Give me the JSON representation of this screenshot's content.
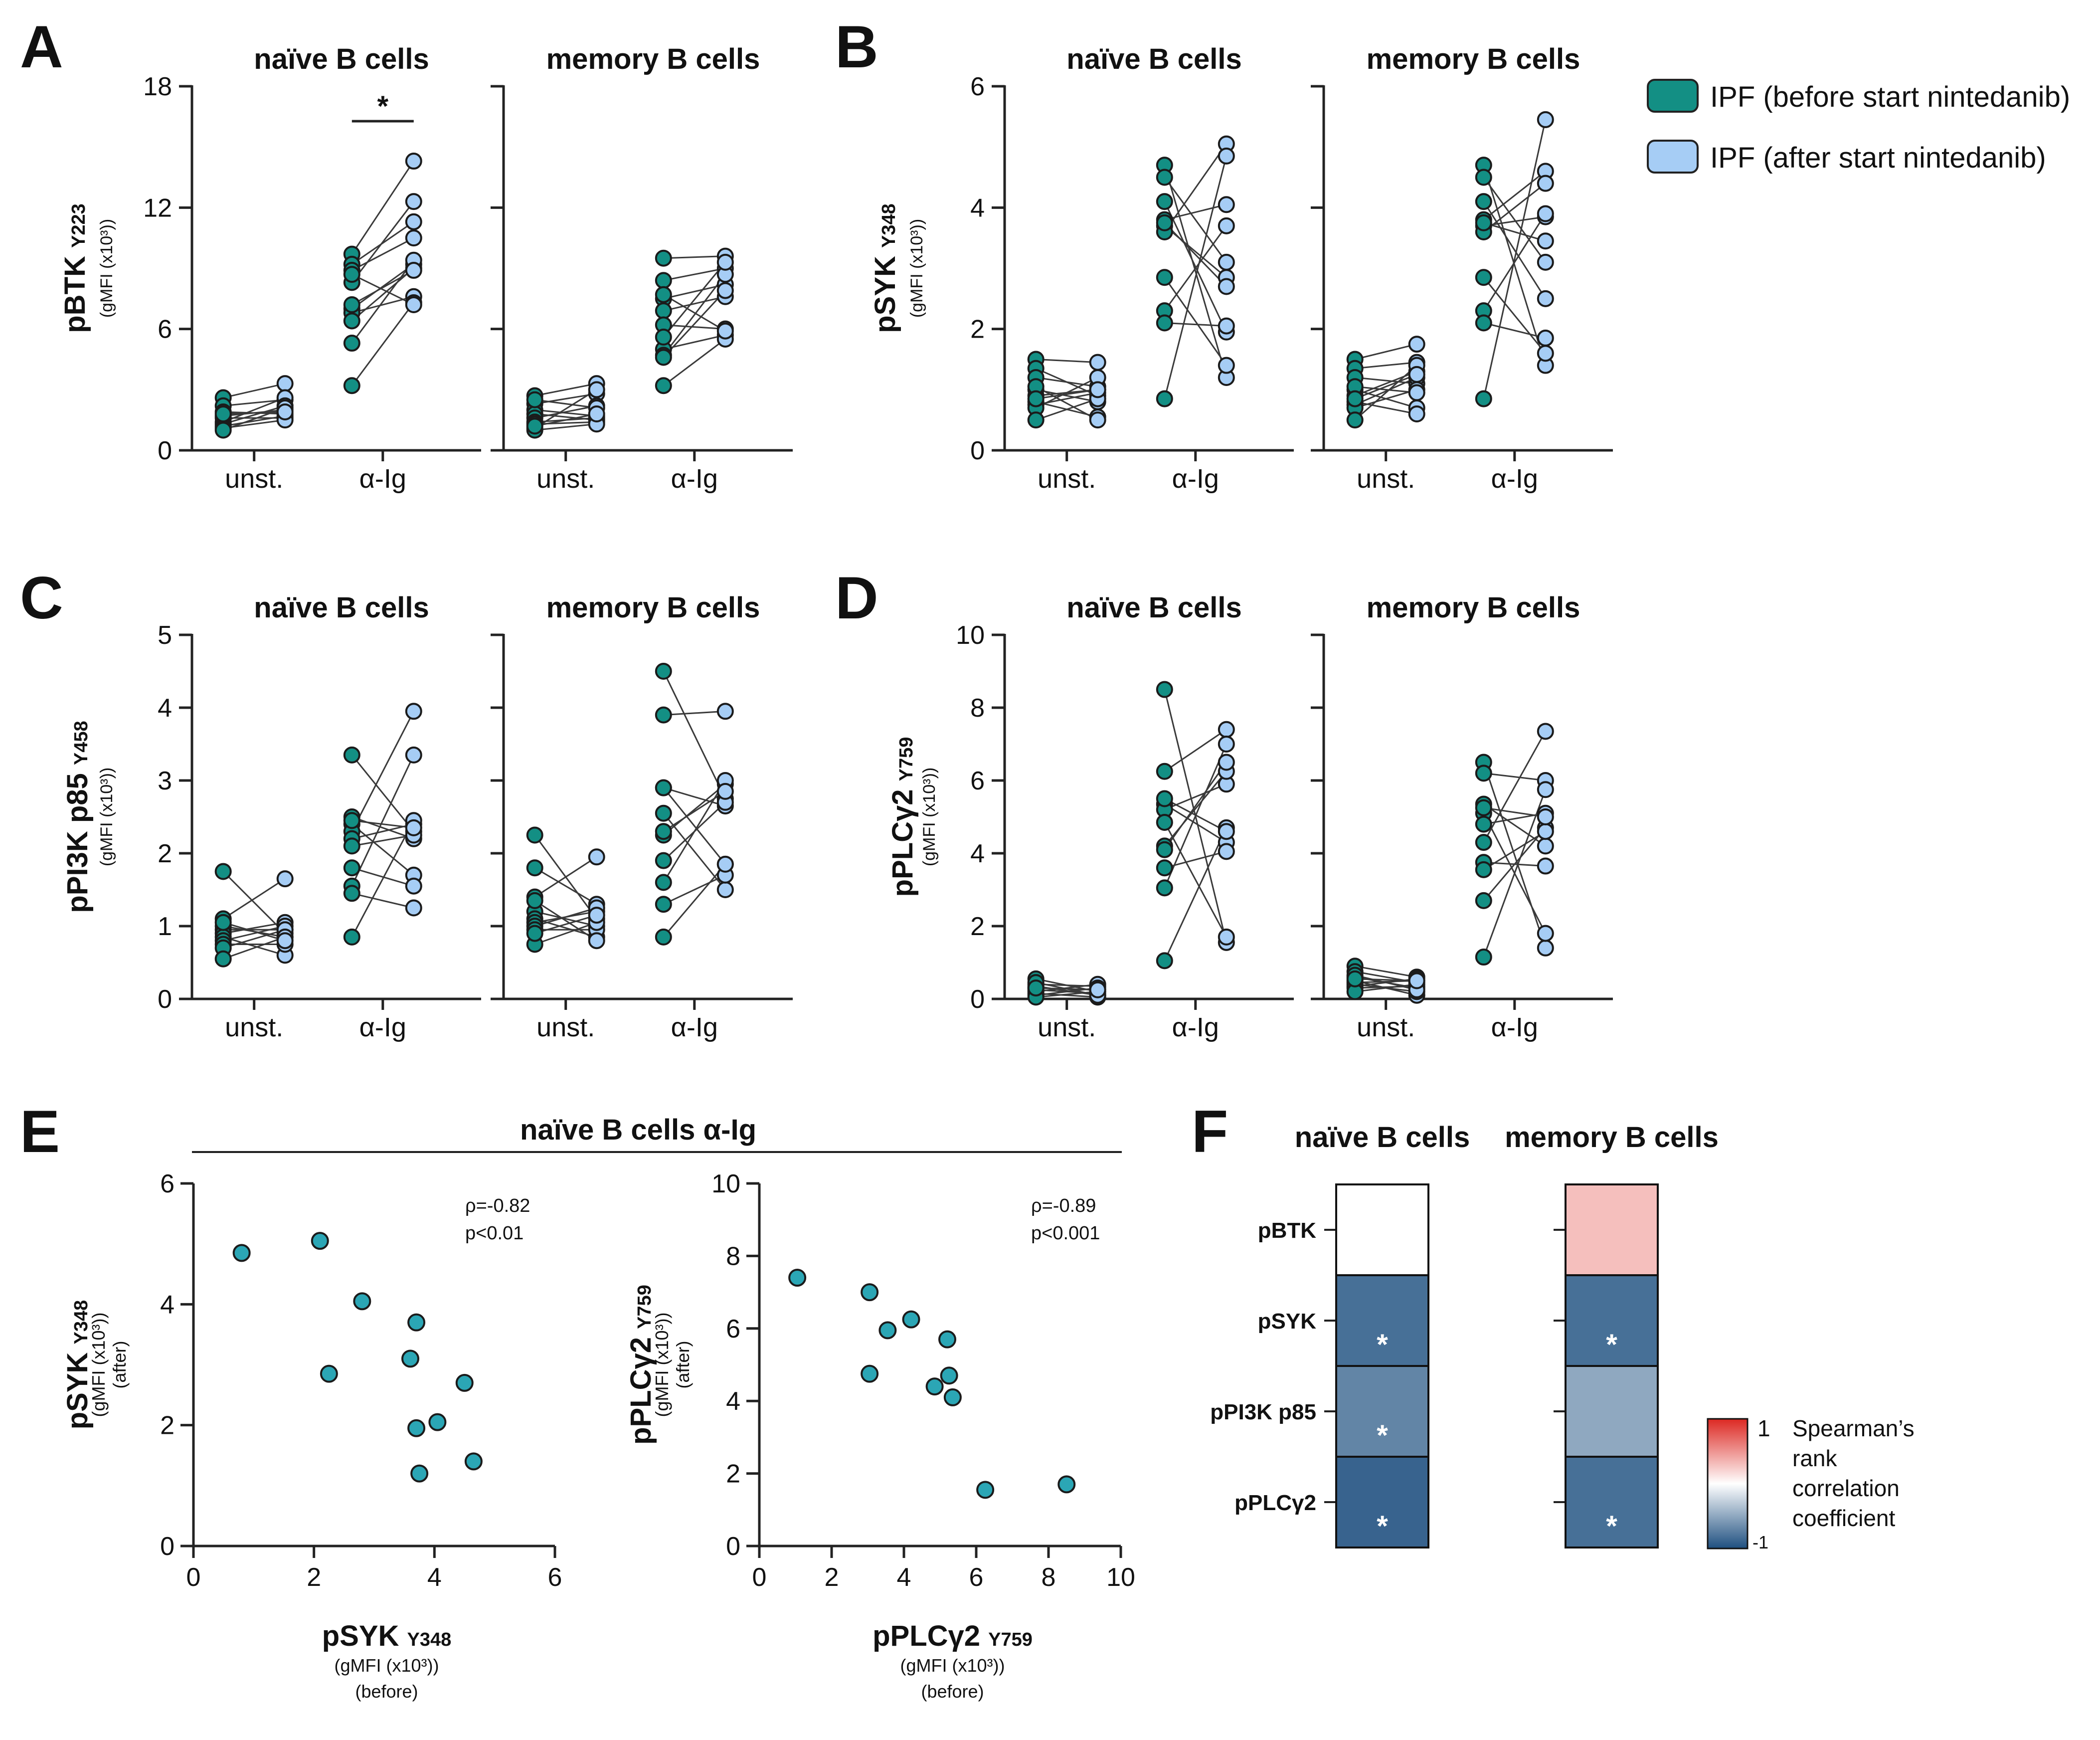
{
  "legend": {
    "before": {
      "label": "IPF (before start nintedanib)",
      "color": "#138f84"
    },
    "after": {
      "label": "IPF (after start nintedanib)",
      "color": "#a6cdf5"
    }
  },
  "colors": {
    "line": "#3a3a3a",
    "axis": "#222222",
    "scatter": "#2ba6b5"
  },
  "chart_data": [
    {
      "id": "A",
      "letter": "A",
      "type": "scatter",
      "ylabel_main": "pBTK",
      "ylabel_site": "Y223",
      "ylabel_unit": "(gMFI (x10³))",
      "ylim": [
        0,
        18
      ],
      "yticks": [
        "0",
        "6",
        "12",
        "18"
      ],
      "ytick_values": [
        0,
        6,
        12,
        18
      ],
      "categories": [
        "unst.",
        "α-Ig"
      ],
      "significance": {
        "panel": 0,
        "category": 1,
        "label": "*"
      },
      "panels": [
        {
          "title": "naïve B cells",
          "unst": {
            "before": [
              2.6,
              2.2,
              1.9,
              1.7,
              1.6,
              1.4,
              1.3,
              1.2,
              1.1,
              1.0,
              1.8
            ],
            "after": [
              3.3,
              2.5,
              1.8,
              2.0,
              1.6,
              2.6,
              2.2,
              1.7,
              1.5,
              2.1,
              1.9
            ]
          },
          "aig": {
            "before": [
              9.7,
              9.2,
              8.9,
              8.3,
              7.0,
              6.8,
              6.4,
              5.3,
              3.2,
              8.7,
              7.2
            ],
            "after": [
              14.3,
              11.3,
              10.5,
              12.3,
              9.2,
              7.6,
              9.0,
              9.4,
              7.3,
              7.2,
              8.9
            ]
          }
        },
        {
          "title": "memory B cells",
          "unst": {
            "before": [
              2.7,
              2.3,
              2.0,
              1.8,
              1.6,
              1.4,
              1.3,
              1.1,
              1.0,
              2.5,
              1.2
            ],
            "after": [
              3.3,
              2.8,
              1.7,
              1.5,
              2.2,
              1.6,
              1.4,
              3.0,
              1.3,
              2.1,
              1.8
            ]
          },
          "aig": {
            "before": [
              9.5,
              8.4,
              7.5,
              6.9,
              6.2,
              5.0,
              4.7,
              4.6,
              3.2,
              7.7,
              5.6
            ],
            "after": [
              9.6,
              9.0,
              8.2,
              7.6,
              6.0,
              5.7,
              8.7,
              7.9,
              5.5,
              5.9,
              9.3
            ]
          }
        }
      ]
    },
    {
      "id": "B",
      "letter": "B",
      "type": "scatter",
      "ylabel_main": "pSYK",
      "ylabel_site": "Y348",
      "ylabel_unit": "(gMFI (x10³))",
      "ylim": [
        0,
        6
      ],
      "yticks": [
        "0",
        "2",
        "4",
        "6"
      ],
      "ytick_values": [
        0,
        2,
        4,
        6
      ],
      "categories": [
        "unst.",
        "α-Ig"
      ],
      "panels": [
        {
          "title": "naïve B cells",
          "unst": {
            "before": [
              1.5,
              1.35,
              1.2,
              1.0,
              0.9,
              0.8,
              0.75,
              0.7,
              0.5,
              1.05,
              0.85
            ],
            "after": [
              1.45,
              0.9,
              1.05,
              0.8,
              1.0,
              0.55,
              0.95,
              1.2,
              0.85,
              0.5,
              1.0
            ]
          },
          "aig": {
            "before": [
              4.7,
              4.5,
              4.1,
              3.8,
              3.7,
              3.6,
              2.85,
              2.3,
              2.1,
              0.85,
              3.75
            ],
            "after": [
              1.2,
              3.1,
              1.95,
              4.05,
              2.85,
              5.05,
              1.4,
              3.7,
              2.05,
              4.85,
              2.7
            ]
          }
        },
        {
          "title": "memory B cells",
          "unst": {
            "before": [
              1.5,
              1.35,
              1.2,
              1.0,
              0.9,
              0.8,
              0.75,
              0.7,
              0.5,
              1.05,
              0.85
            ],
            "after": [
              1.75,
              1.45,
              1.1,
              0.7,
              1.3,
              0.6,
              1.2,
              1.0,
              1.4,
              0.95,
              1.25
            ]
          },
          "aig": {
            "before": [
              4.7,
              4.5,
              4.1,
              3.8,
              3.7,
              3.6,
              2.85,
              2.3,
              2.1,
              0.85,
              3.75
            ],
            "after": [
              1.4,
              3.1,
              2.5,
              4.6,
              3.85,
              4.4,
              1.6,
              3.9,
              1.85,
              5.45,
              3.45
            ]
          }
        }
      ]
    },
    {
      "id": "C",
      "letter": "C",
      "type": "scatter",
      "ylabel_main": "pPI3K p85",
      "ylabel_site": "Y458",
      "ylabel_unit": "(gMFI (x10³))",
      "ylim": [
        0,
        5
      ],
      "yticks": [
        "0",
        "1",
        "2",
        "3",
        "4",
        "5"
      ],
      "ytick_values": [
        0,
        1,
        2,
        3,
        4,
        5
      ],
      "categories": [
        "unst.",
        "α-Ig"
      ],
      "panels": [
        {
          "title": "naïve B cells",
          "unst": {
            "before": [
              1.75,
              1.1,
              1.0,
              0.95,
              0.9,
              0.85,
              0.8,
              0.75,
              0.7,
              0.55,
              1.05
            ],
            "after": [
              0.9,
              1.65,
              0.85,
              0.95,
              1.05,
              0.6,
              1.0,
              0.75,
              0.95,
              0.85,
              0.8
            ]
          },
          "aig": {
            "before": [
              3.35,
              2.5,
              2.4,
              2.3,
              2.2,
              1.8,
              1.55,
              1.45,
              0.85,
              2.1,
              2.45
            ],
            "after": [
              2.3,
              2.2,
              1.7,
              3.95,
              2.4,
              1.55,
              3.35,
              1.25,
              2.45,
              2.25,
              2.35
            ]
          }
        },
        {
          "title": "memory B cells",
          "unst": {
            "before": [
              2.25,
              1.8,
              1.4,
              1.2,
              1.1,
              1.05,
              1.0,
              0.95,
              0.75,
              0.9,
              1.35
            ],
            "after": [
              1.1,
              1.3,
              1.95,
              1.0,
              0.85,
              1.2,
              1.25,
              0.95,
              1.05,
              1.15,
              0.8
            ]
          },
          "aig": {
            "before": [
              4.5,
              3.9,
              2.9,
              2.9,
              2.55,
              2.25,
              1.9,
              1.6,
              1.3,
              0.85,
              2.3
            ],
            "after": [
              2.75,
              3.95,
              1.85,
              2.65,
              1.5,
              2.95,
              2.7,
              3.0,
              1.7,
              1.85,
              2.85
            ]
          }
        }
      ]
    },
    {
      "id": "D",
      "letter": "D",
      "type": "scatter",
      "ylabel_main": "pPLCγ2",
      "ylabel_site": "Y759",
      "ylabel_unit": "(gMFI (x10³))",
      "ylim": [
        0,
        10
      ],
      "yticks": [
        "0",
        "2",
        "4",
        "6",
        "8",
        "10"
      ],
      "ytick_values": [
        0,
        2,
        4,
        6,
        8,
        10
      ],
      "categories": [
        "unst.",
        "α-Ig"
      ],
      "panels": [
        {
          "title": "naïve B cells",
          "unst": {
            "before": [
              0.55,
              0.4,
              0.35,
              0.3,
              0.25,
              0.2,
              0.15,
              0.1,
              0.05,
              0.45,
              0.3
            ],
            "after": [
              0.2,
              0.35,
              0.1,
              0.25,
              0.15,
              0.4,
              0.05,
              0.3,
              0.2,
              0.1,
              0.25
            ]
          },
          "aig": {
            "before": [
              8.5,
              6.25,
              5.35,
              5.2,
              4.85,
              4.2,
              3.6,
              3.05,
              1.05,
              4.1,
              5.5
            ],
            "after": [
              1.55,
              7.4,
              4.3,
              5.9,
              1.7,
              6.25,
              4.05,
              7.0,
              4.7,
              6.5,
              4.6
            ]
          }
        },
        {
          "title": "memory B cells",
          "unst": {
            "before": [
              0.9,
              0.75,
              0.6,
              0.5,
              0.45,
              0.4,
              0.35,
              0.3,
              0.2,
              0.65,
              0.55
            ],
            "after": [
              0.6,
              0.45,
              0.3,
              0.1,
              0.5,
              0.2,
              0.55,
              0.35,
              0.4,
              0.25,
              0.5
            ]
          },
          "aig": {
            "before": [
              6.5,
              6.2,
              5.35,
              5.1,
              4.8,
              4.3,
              3.75,
              2.7,
              1.15,
              3.55,
              5.25
            ],
            "after": [
              1.4,
              6.0,
              4.2,
              1.8,
              5.1,
              7.35,
              3.65,
              4.7,
              5.75,
              4.6,
              5.0
            ]
          }
        }
      ]
    },
    {
      "id": "E",
      "letter": "E",
      "type": "scatter",
      "group_title": "naïve B cells α-Ig",
      "plots": [
        {
          "xlabel_main": "pSYK",
          "xlabel_site": "Y348",
          "xlabel_unit": "(gMFI (x10³))",
          "xlabel_note": "(before)",
          "ylabel_main": "pSYK",
          "ylabel_site": "Y348",
          "ylabel_unit": "(gMFI (x10³))",
          "ylabel_note": "(after)",
          "xlim": [
            0,
            6
          ],
          "ylim": [
            0,
            6
          ],
          "xticks": [
            "0",
            "2",
            "4",
            "6"
          ],
          "xtick_values": [
            0,
            2,
            4,
            6
          ],
          "yticks": [
            "0",
            "2",
            "4",
            "6"
          ],
          "ytick_values": [
            0,
            2,
            4,
            6
          ],
          "rho": "ρ=-0.82",
          "p": "p<0.01",
          "points": [
            [
              0.8,
              4.85
            ],
            [
              2.1,
              5.05
            ],
            [
              2.8,
              4.05
            ],
            [
              2.25,
              2.85
            ],
            [
              3.7,
              3.7
            ],
            [
              3.6,
              3.1
            ],
            [
              3.7,
              1.95
            ],
            [
              4.05,
              2.05
            ],
            [
              4.5,
              2.7
            ],
            [
              3.75,
              1.2
            ],
            [
              4.65,
              1.4
            ]
          ]
        },
        {
          "xlabel_main": "pPLCγ2",
          "xlabel_site": "Y759",
          "xlabel_unit": "(gMFI (x10³))",
          "xlabel_note": "(before)",
          "ylabel_main": "pPLCγ2",
          "ylabel_site": "Y759",
          "ylabel_unit": "(gMFI (x10³))",
          "ylabel_note": "(after)",
          "xlim": [
            0,
            10
          ],
          "ylim": [
            0,
            10
          ],
          "xticks": [
            "0",
            "2",
            "4",
            "6",
            "8",
            "10"
          ],
          "xtick_values": [
            0,
            2,
            4,
            6,
            8,
            10
          ],
          "yticks": [
            "0",
            "2",
            "4",
            "6",
            "8",
            "10"
          ],
          "ytick_values": [
            0,
            2,
            4,
            6,
            8,
            10
          ],
          "rho": "ρ=-0.89",
          "p": "p<0.001",
          "points": [
            [
              1.05,
              7.4
            ],
            [
              3.05,
              7.0
            ],
            [
              4.2,
              6.25
            ],
            [
              3.55,
              5.95
            ],
            [
              3.05,
              4.75
            ],
            [
              5.2,
              5.7
            ],
            [
              5.25,
              4.7
            ],
            [
              4.85,
              4.4
            ],
            [
              5.35,
              4.1
            ],
            [
              6.25,
              1.55
            ],
            [
              8.5,
              1.7
            ]
          ]
        }
      ]
    },
    {
      "id": "F",
      "letter": "F",
      "type": "heatmap",
      "columns": [
        "naïve B cells",
        "memory B cells"
      ],
      "rows": [
        "pBTK",
        "pSYK",
        "pPI3K p85",
        "pPLCγ2"
      ],
      "values": [
        [
          0.0,
          0.3
        ],
        [
          -0.82,
          -0.82
        ],
        [
          -0.7,
          -0.5
        ],
        [
          -0.89,
          -0.82
        ]
      ],
      "significant": [
        [
          false,
          false
        ],
        [
          true,
          true
        ],
        [
          true,
          false
        ],
        [
          true,
          true
        ]
      ],
      "sig_marker": "*",
      "colorbar": {
        "max_label": "1",
        "min_label": "-1",
        "title": [
          "Spearman’s",
          "rank",
          "correlation",
          "coefficient"
        ]
      }
    }
  ]
}
